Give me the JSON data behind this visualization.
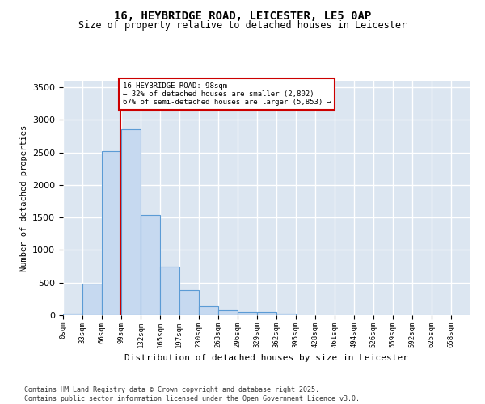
{
  "title_line1": "16, HEYBRIDGE ROAD, LEICESTER, LE5 0AP",
  "title_line2": "Size of property relative to detached houses in Leicester",
  "xlabel": "Distribution of detached houses by size in Leicester",
  "ylabel": "Number of detached properties",
  "bar_values": [
    20,
    480,
    2520,
    2850,
    1540,
    750,
    390,
    140,
    70,
    55,
    55,
    30,
    5,
    5,
    5,
    5,
    5,
    5,
    5,
    5,
    5
  ],
  "bin_edges": [
    0,
    33,
    66,
    99,
    132,
    165,
    197,
    230,
    263,
    296,
    329,
    362,
    395,
    428,
    461,
    494,
    526,
    559,
    592,
    625,
    658,
    691
  ],
  "bin_labels": [
    "0sqm",
    "33sqm",
    "66sqm",
    "99sqm",
    "132sqm",
    "165sqm",
    "197sqm",
    "230sqm",
    "263sqm",
    "296sqm",
    "329sqm",
    "362sqm",
    "395sqm",
    "428sqm",
    "461sqm",
    "494sqm",
    "526sqm",
    "559sqm",
    "592sqm",
    "625sqm",
    "658sqm"
  ],
  "bar_color": "#c6d9f0",
  "bar_edge_color": "#5b9bd5",
  "background_color": "#dce6f1",
  "figure_color": "#ffffff",
  "grid_color": "#ffffff",
  "property_sqm": 98,
  "annotation_line1": "16 HEYBRIDGE ROAD: 98sqm",
  "annotation_line2": "← 32% of detached houses are smaller (2,802)",
  "annotation_line3": "67% of semi-detached houses are larger (5,853) →",
  "vline_color": "#cc0000",
  "annotation_box_color": "#ffffff",
  "annotation_box_edge": "#cc0000",
  "ylim": [
    0,
    3600
  ],
  "yticks": [
    0,
    500,
    1000,
    1500,
    2000,
    2500,
    3000,
    3500
  ],
  "footer_line1": "Contains HM Land Registry data © Crown copyright and database right 2025.",
  "footer_line2": "Contains public sector information licensed under the Open Government Licence v3.0."
}
